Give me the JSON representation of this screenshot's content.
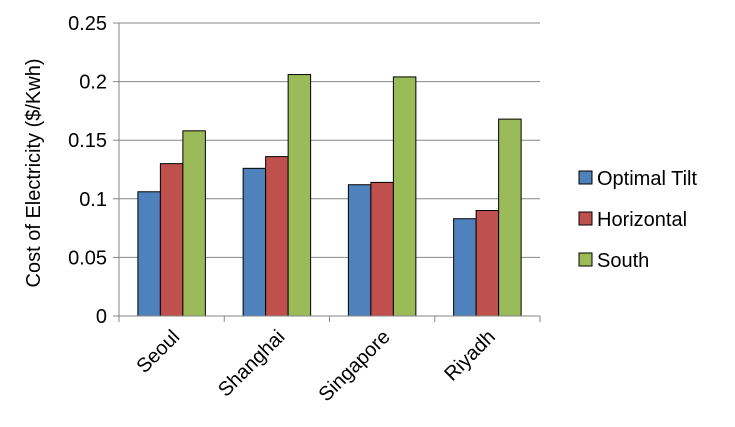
{
  "chart_data": {
    "type": "bar",
    "title": "",
    "xlabel": "",
    "ylabel": "Cost of Electricity ($/Kwh)",
    "categories": [
      "Seoul",
      "Shanghai",
      "Singapore",
      "Riyadh"
    ],
    "series": [
      {
        "name": "Optimal Tilt",
        "color": "#4F81BD",
        "values": [
          0.106,
          0.126,
          0.112,
          0.083
        ]
      },
      {
        "name": "Horizontal",
        "color": "#C0504D",
        "values": [
          0.13,
          0.136,
          0.114,
          0.09
        ]
      },
      {
        "name": "South",
        "color": "#9BBB59",
        "values": [
          0.158,
          0.206,
          0.204,
          0.168
        ]
      }
    ],
    "ylim": [
      0,
      0.25
    ],
    "yticks": [
      "0",
      "0.05",
      "0.1",
      "0.15",
      "0.2",
      "0.25"
    ],
    "grid": true,
    "legend_position": "right"
  }
}
